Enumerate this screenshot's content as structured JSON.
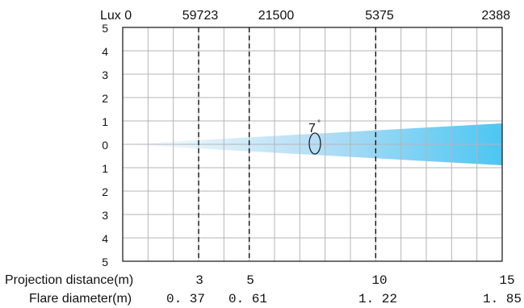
{
  "top_axis": {
    "lux_label": "Lux 0",
    "values": [
      "59723",
      "21500",
      "5375",
      "2388"
    ]
  },
  "y_ticks": [
    "5",
    "4",
    "3",
    "2",
    "1",
    "0",
    "1",
    "2",
    "3",
    "4",
    "5"
  ],
  "beam": {
    "angle": "7",
    "degree_symbol": "°",
    "colors": {
      "start": "#ffffff",
      "mid": "#aedcf5",
      "end": "#4cc6f2"
    }
  },
  "bottom": {
    "projection_label": "Projection distance(m)",
    "flare_label": "Flare diameter(m)",
    "distances": [
      "3",
      "5",
      "10",
      "15"
    ],
    "diameters": [
      "0. 37",
      "0. 61",
      "1. 22",
      "1. 85"
    ]
  }
}
